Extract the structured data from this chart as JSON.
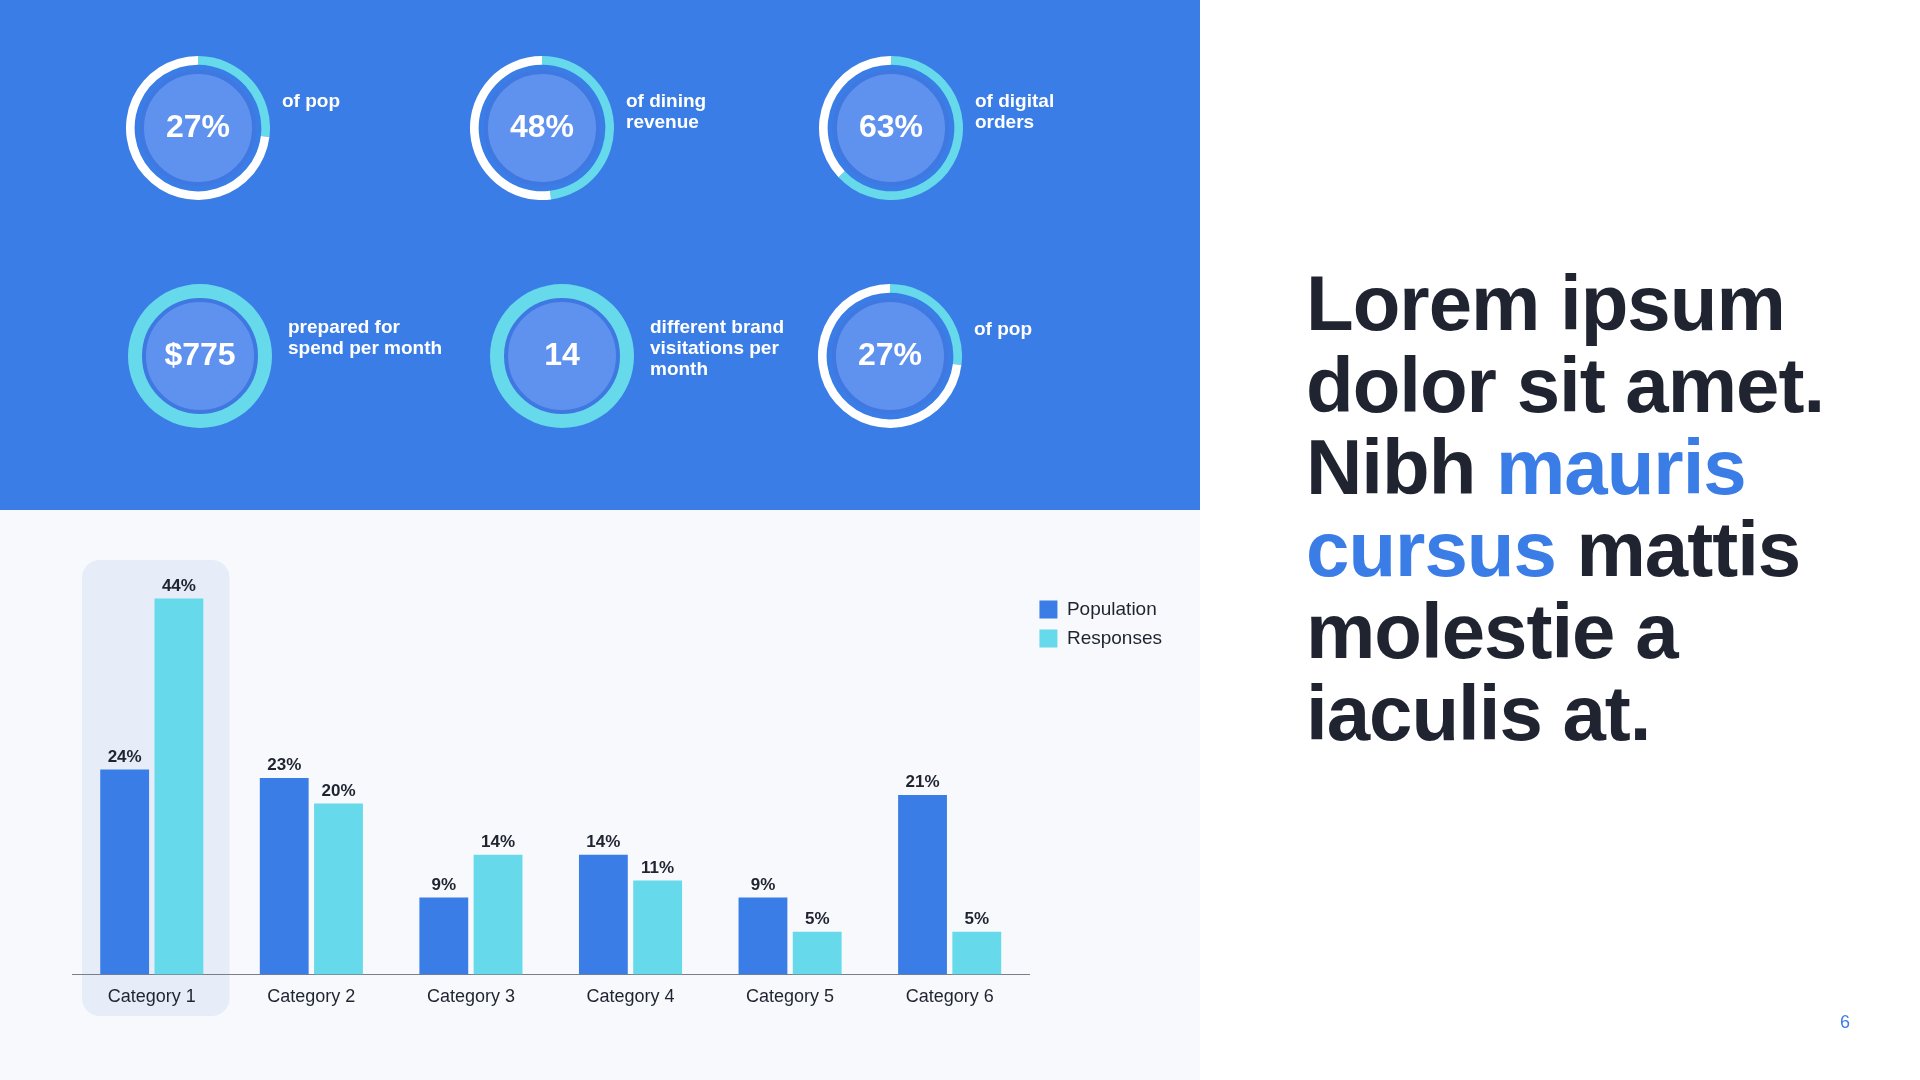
{
  "chart_data": [
    {
      "type": "donut",
      "categories": [
        null,
        null
      ],
      "values": [
        27,
        73
      ],
      "colors": [
        "#66d9ea",
        "#ffffff"
      ],
      "annotations": [
        "27%",
        "of pop"
      ]
    },
    {
      "type": "donut",
      "categories": [
        null,
        null
      ],
      "values": [
        48,
        52
      ],
      "colors": [
        "#66d9ea",
        "#ffffff"
      ],
      "annotations": [
        "48%",
        "of dining revenue"
      ]
    },
    {
      "type": "donut",
      "categories": [
        null,
        null
      ],
      "values": [
        63,
        37
      ],
      "colors": [
        "#66d9ea",
        "#ffffff"
      ],
      "annotations": [
        "63%",
        "of digital orders"
      ]
    },
    {
      "type": "other",
      "annotations": [
        "$775",
        "prepared for spend per month"
      ]
    },
    {
      "type": "other",
      "annotations": [
        "14",
        "different brand visitations per month"
      ]
    },
    {
      "type": "donut",
      "categories": [
        null,
        null
      ],
      "values": [
        27,
        73
      ],
      "colors": [
        "#66d9ea",
        "#ffffff"
      ],
      "annotations": [
        "27%",
        "of pop"
      ]
    },
    {
      "type": "bar",
      "categories": [
        "Category 1",
        "Category 2",
        "Category 3",
        "Category 4",
        "Category 5",
        "Category 6"
      ],
      "series": [
        {
          "name": "Population",
          "color": "#3b7de6",
          "values": [
            24,
            23,
            9,
            14,
            9,
            21
          ],
          "value_labels": [
            "24%",
            "23%",
            "9%",
            "14%",
            "9%",
            "21%"
          ]
        },
        {
          "name": "Responses",
          "color": "#66d9ea",
          "values": [
            44,
            20,
            14,
            11,
            5,
            5
          ],
          "value_labels": [
            "44%",
            "20%",
            "14%",
            "11%",
            "5%",
            "5%"
          ]
        }
      ],
      "bands": [
        {
          "axis": "x",
          "from": "Category 1",
          "to": "Category 1",
          "color": "#e6edf8"
        }
      ],
      "legend": "top right"
    },
    {
      "type": "other",
      "annotations": [
        "Lorem ipsum dolor sit amet. Nibh ",
        "mauris cursus",
        " mattis molestie a iaculis at."
      ],
      "subtitle": "6"
    }
  ]
}
